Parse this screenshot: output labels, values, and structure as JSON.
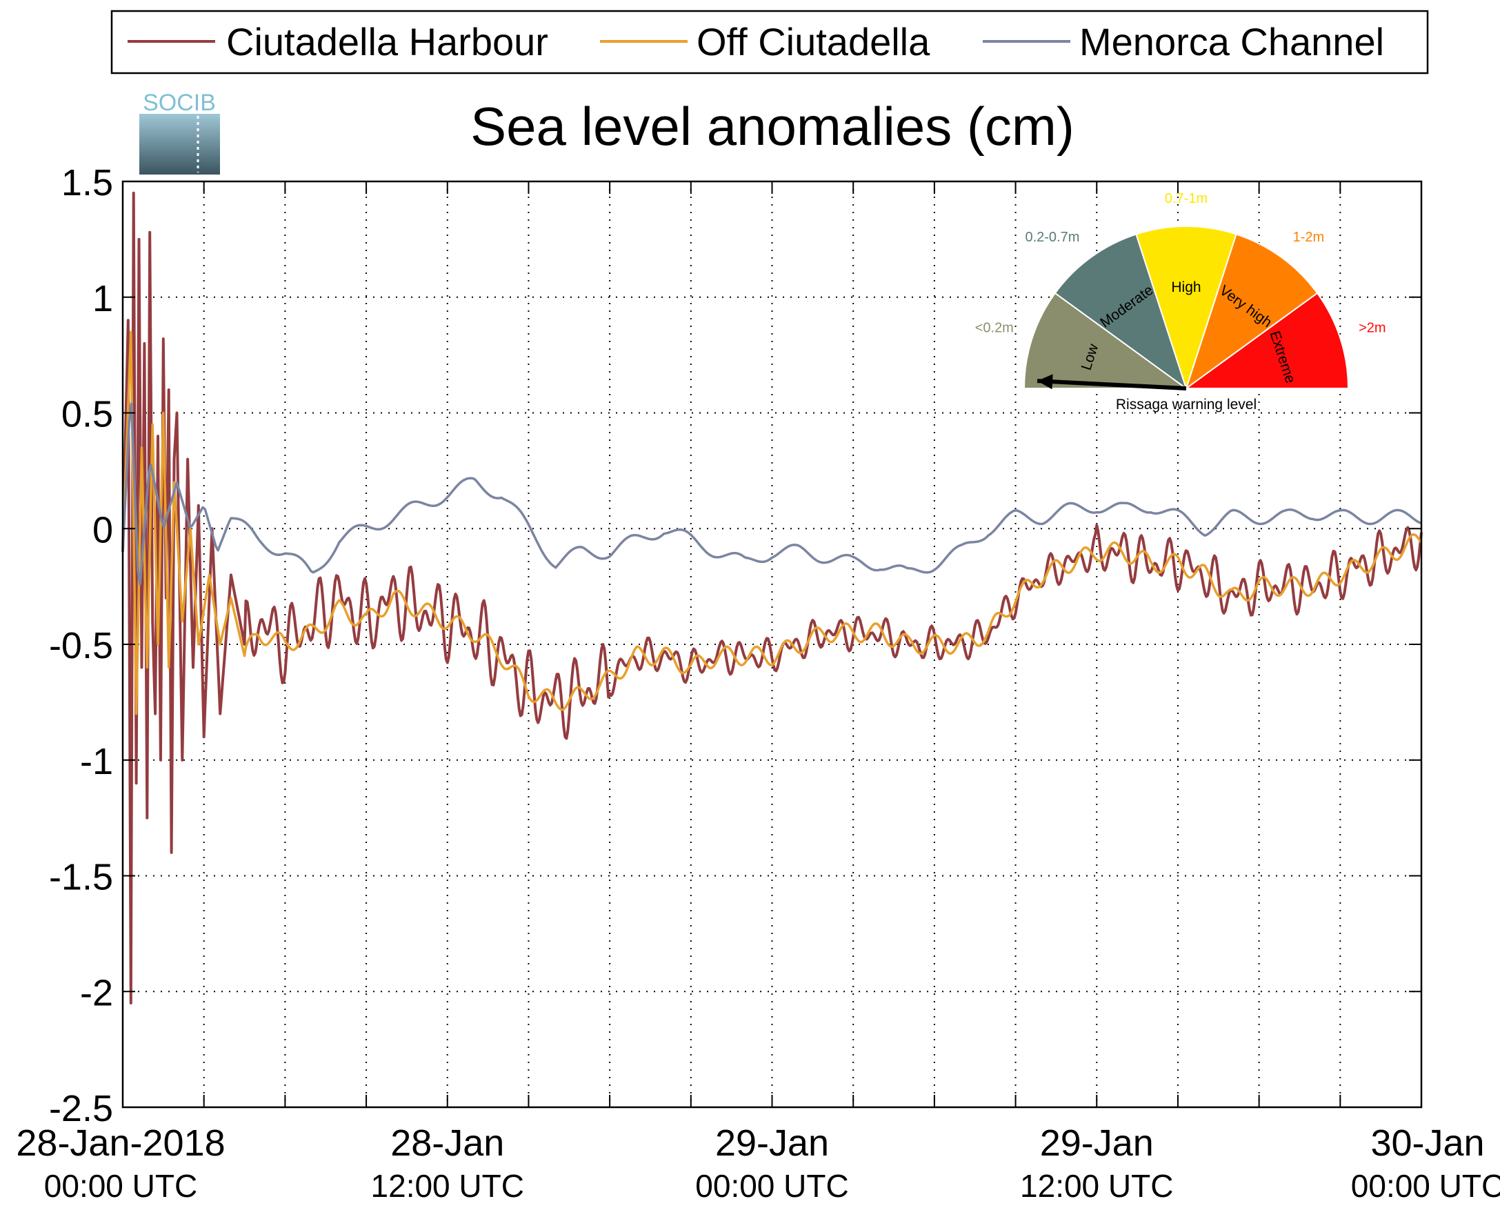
{
  "colors": {
    "harbour": "#943c40",
    "off": "#e8a02c",
    "channel": "#7b85a1",
    "low": "#8b8e6c",
    "moderate": "#5a7a78",
    "high": "#ffe600",
    "very_high": "#ff8000",
    "extreme": "#ff0a0a"
  },
  "logo": {
    "text": "SOCIB"
  },
  "chart_data": {
    "type": "line",
    "title": "Sea level anomalies (cm)",
    "xlabel": "",
    "ylabel": "",
    "ylim": [
      -2.5,
      1.5
    ],
    "yticks": [
      "1.5",
      "1",
      "0.5",
      "0",
      "-0.5",
      "-1",
      "-1.5",
      "-2",
      "-2.5"
    ],
    "xlim_hours": [
      0,
      48
    ],
    "xticks": [
      {
        "line1": "28-Jan-2018",
        "line2": "00:00 UTC"
      },
      {
        "line1": "28-Jan",
        "line2": "12:00 UTC"
      },
      {
        "line1": "29-Jan",
        "line2": "00:00 UTC"
      },
      {
        "line1": "29-Jan",
        "line2": "12:00 UTC"
      },
      {
        "line1": "30-Jan",
        "line2": "00:00 UTC"
      }
    ],
    "grid": true,
    "legend_position": "top",
    "series": [
      {
        "name": "Ciutadella Harbour",
        "x": [
          0,
          0.2,
          0.3,
          0.4,
          0.5,
          0.6,
          0.7,
          0.8,
          0.9,
          1.0,
          1.1,
          1.2,
          1.3,
          1.4,
          1.5,
          1.6,
          1.7,
          1.8,
          1.9,
          2.0,
          2.2,
          2.4,
          2.6,
          2.8,
          3.0,
          3.3,
          3.6,
          4.0,
          4.5,
          5,
          6,
          7,
          8,
          9,
          10,
          11,
          12,
          13,
          14,
          15,
          16,
          17,
          18,
          19,
          20,
          21,
          22,
          23,
          24,
          25,
          26,
          27,
          28,
          29,
          30,
          31,
          32,
          33,
          34,
          35,
          36,
          37,
          38,
          39,
          40,
          41,
          42,
          43,
          44,
          45,
          46,
          47,
          48
        ],
        "y": [
          -0.1,
          0.9,
          -2.05,
          1.45,
          -1.1,
          1.25,
          -0.6,
          0.8,
          -1.25,
          1.28,
          -0.4,
          -0.8,
          0.4,
          -1.0,
          0.82,
          -0.3,
          0.6,
          -1.4,
          0.3,
          0.5,
          -1.0,
          0.3,
          -0.6,
          0.1,
          -0.9,
          0.0,
          -0.8,
          -0.2,
          -0.5,
          -0.4,
          -0.5,
          -0.4,
          -0.3,
          -0.4,
          -0.3,
          -0.35,
          -0.4,
          -0.45,
          -0.55,
          -0.7,
          -0.75,
          -0.7,
          -0.65,
          -0.55,
          -0.55,
          -0.6,
          -0.55,
          -0.55,
          -0.55,
          -0.5,
          -0.45,
          -0.45,
          -0.45,
          -0.5,
          -0.5,
          -0.5,
          -0.45,
          -0.3,
          -0.2,
          -0.15,
          -0.1,
          -0.1,
          -0.15,
          -0.15,
          -0.2,
          -0.3,
          -0.25,
          -0.25,
          -0.25,
          -0.2,
          -0.15,
          -0.1,
          -0.05
        ]
      },
      {
        "name": "Off Ciutadella",
        "x": [
          0,
          0.3,
          0.5,
          0.7,
          0.9,
          1.1,
          1.3,
          1.5,
          1.7,
          1.9,
          2.2,
          2.5,
          2.8,
          3.2,
          3.6,
          4,
          4.5,
          5,
          6,
          7,
          8,
          9,
          10,
          11,
          12,
          13,
          14,
          15,
          16,
          17,
          18,
          19,
          20,
          21,
          22,
          23,
          24,
          25,
          26,
          27,
          28,
          29,
          30,
          31,
          32,
          33,
          34,
          35,
          36,
          37,
          38,
          39,
          40,
          41,
          42,
          43,
          44,
          45,
          46,
          47,
          48
        ],
        "y": [
          -0.1,
          0.85,
          -0.8,
          0.35,
          -0.6,
          0.45,
          -0.5,
          0.5,
          -0.6,
          0.2,
          -0.4,
          0.0,
          -0.5,
          -0.2,
          -0.5,
          -0.3,
          -0.55,
          -0.45,
          -0.5,
          -0.45,
          -0.35,
          -0.4,
          -0.3,
          -0.35,
          -0.4,
          -0.45,
          -0.55,
          -0.7,
          -0.75,
          -0.72,
          -0.65,
          -0.55,
          -0.55,
          -0.6,
          -0.55,
          -0.55,
          -0.55,
          -0.5,
          -0.45,
          -0.45,
          -0.45,
          -0.5,
          -0.5,
          -0.5,
          -0.45,
          -0.3,
          -0.2,
          -0.15,
          -0.1,
          -0.1,
          -0.15,
          -0.15,
          -0.2,
          -0.3,
          -0.25,
          -0.25,
          -0.25,
          -0.2,
          -0.15,
          -0.1,
          -0.05
        ]
      },
      {
        "name": "Menorca Channel",
        "x": [
          0,
          0.3,
          0.6,
          1,
          1.5,
          2,
          2.5,
          3,
          3.5,
          4,
          5,
          6,
          7,
          8,
          9,
          10,
          11,
          12,
          13,
          14,
          15,
          16,
          17,
          18,
          19,
          20,
          21,
          22,
          23,
          24,
          25,
          26,
          27,
          28,
          29,
          30,
          31,
          32,
          33,
          34,
          35,
          36,
          37,
          38,
          39,
          40,
          41,
          42,
          43,
          44,
          45,
          46,
          47,
          48
        ],
        "y": [
          -0.1,
          0.6,
          -0.3,
          0.3,
          0.0,
          0.2,
          0.0,
          0.1,
          -0.1,
          0.05,
          -0.05,
          -0.1,
          -0.2,
          -0.05,
          0.0,
          0.05,
          0.1,
          0.15,
          0.2,
          0.15,
          0.0,
          -0.15,
          -0.1,
          -0.1,
          -0.05,
          0.0,
          -0.05,
          -0.1,
          -0.15,
          -0.1,
          -0.1,
          -0.12,
          -0.15,
          -0.15,
          -0.2,
          -0.15,
          -0.1,
          0.0,
          0.05,
          0.05,
          0.08,
          0.1,
          0.08,
          0.1,
          0.05,
          0.0,
          0.05,
          0.05,
          0.05,
          0.07,
          0.05,
          0.05,
          0.05,
          0.05
        ]
      }
    ]
  },
  "gauge": {
    "title": "Rissaga warning level",
    "segments": [
      {
        "label": "Low",
        "range": "<0.2m",
        "color_key": "low"
      },
      {
        "label": "Moderate",
        "range": "0.2-0.7m",
        "color_key": "moderate"
      },
      {
        "label": "High",
        "range": "0.7-1m",
        "color_key": "high"
      },
      {
        "label": "Very high",
        "range": "1-2m",
        "color_key": "very_high"
      },
      {
        "label": "Extreme",
        "range": ">2m",
        "color_key": "extreme"
      }
    ],
    "active_segment": "Low"
  }
}
